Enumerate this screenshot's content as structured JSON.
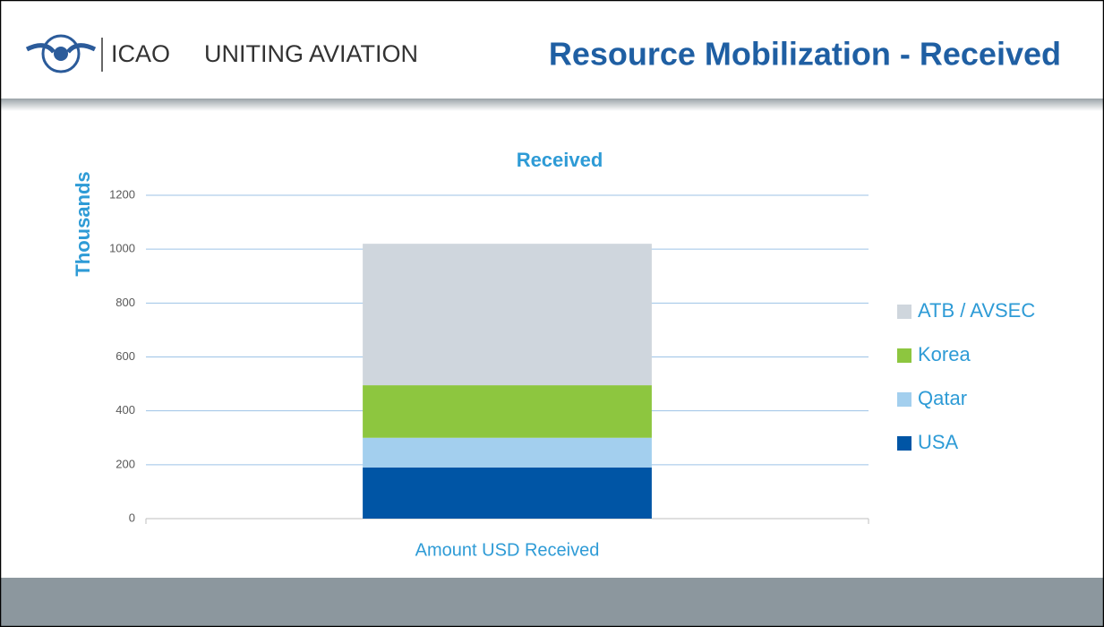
{
  "header": {
    "org": "ICAO",
    "tagline": "UNITING AVIATION",
    "title": "Resource Mobilization - Received"
  },
  "chart_data": {
    "type": "stacked_bar",
    "title": "Received",
    "y_label": "Thousands",
    "categories": [
      "Amount USD Received"
    ],
    "series": [
      {
        "name": "USA",
        "color": "#0055a5",
        "values": [
          190
        ]
      },
      {
        "name": "Qatar",
        "color": "#a3cfee",
        "values": [
          110
        ]
      },
      {
        "name": "Korea",
        "color": "#8dc63f",
        "values": [
          195
        ]
      },
      {
        "name": "ATB / AVSEC",
        "color": "#cfd6dd",
        "values": [
          525
        ]
      }
    ],
    "ylim": [
      0,
      1200
    ],
    "yticks": [
      0,
      200,
      400,
      600,
      800,
      1000,
      1200
    ],
    "grid": true,
    "legend": "right"
  }
}
